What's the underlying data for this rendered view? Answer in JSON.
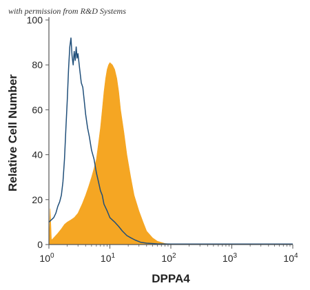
{
  "chart_data": {
    "type": "area",
    "note": "with permission from R&D Systems",
    "xlabel": "DPPA4",
    "ylabel": "Relative Cell Number",
    "xscale": "log",
    "xlim": [
      1,
      10000
    ],
    "ylim": [
      0,
      100
    ],
    "yticks": [
      0,
      20,
      40,
      60,
      80,
      100
    ],
    "xticks": [
      {
        "value": 1,
        "base": "10",
        "exp": "0"
      },
      {
        "value": 10,
        "base": "10",
        "exp": "1"
      },
      {
        "value": 100,
        "base": "10",
        "exp": "2"
      },
      {
        "value": 1000,
        "base": "10",
        "exp": "3"
      },
      {
        "value": 10000,
        "base": "10",
        "exp": "4"
      }
    ],
    "grid": false,
    "legend": "none",
    "series": [
      {
        "style": "filled",
        "color": "#f5a623",
        "points": [
          [
            1.0,
            0
          ],
          [
            1.05,
            16
          ],
          [
            1.1,
            2
          ],
          [
            1.2,
            3
          ],
          [
            1.4,
            5
          ],
          [
            1.6,
            7
          ],
          [
            1.8,
            9
          ],
          [
            2.0,
            10
          ],
          [
            2.3,
            11
          ],
          [
            2.6,
            12
          ],
          [
            3.0,
            14
          ],
          [
            3.5,
            18
          ],
          [
            4.0,
            22
          ],
          [
            4.5,
            26
          ],
          [
            5.0,
            30
          ],
          [
            5.5,
            34
          ],
          [
            6.0,
            38
          ],
          [
            6.5,
            45
          ],
          [
            7.0,
            52
          ],
          [
            7.5,
            60
          ],
          [
            8.0,
            68
          ],
          [
            8.5,
            74
          ],
          [
            9.0,
            78
          ],
          [
            9.5,
            80
          ],
          [
            10.0,
            81
          ],
          [
            11.0,
            80
          ],
          [
            12.0,
            78
          ],
          [
            13.0,
            74
          ],
          [
            14.0,
            68
          ],
          [
            15.0,
            60
          ],
          [
            17.0,
            50
          ],
          [
            19.0,
            40
          ],
          [
            22.0,
            30
          ],
          [
            25.0,
            22
          ],
          [
            30.0,
            15
          ],
          [
            35.0,
            10
          ],
          [
            40.0,
            6
          ],
          [
            50.0,
            3
          ],
          [
            60.0,
            1.5
          ],
          [
            80.0,
            0.5
          ],
          [
            100.0,
            0.2
          ],
          [
            10000.0,
            0
          ]
        ]
      },
      {
        "style": "line",
        "color": "#1f4e79",
        "points": [
          [
            1.0,
            10
          ],
          [
            1.1,
            11
          ],
          [
            1.2,
            12
          ],
          [
            1.3,
            14
          ],
          [
            1.4,
            17
          ],
          [
            1.5,
            19
          ],
          [
            1.6,
            22
          ],
          [
            1.7,
            28
          ],
          [
            1.8,
            38
          ],
          [
            1.9,
            52
          ],
          [
            2.0,
            64
          ],
          [
            2.1,
            78
          ],
          [
            2.2,
            88
          ],
          [
            2.3,
            92
          ],
          [
            2.4,
            84
          ],
          [
            2.5,
            80
          ],
          [
            2.6,
            86
          ],
          [
            2.7,
            82
          ],
          [
            2.8,
            88
          ],
          [
            2.9,
            83
          ],
          [
            3.0,
            85
          ],
          [
            3.2,
            78
          ],
          [
            3.4,
            72
          ],
          [
            3.6,
            70
          ],
          [
            3.8,
            64
          ],
          [
            4.0,
            58
          ],
          [
            4.3,
            52
          ],
          [
            4.6,
            48
          ],
          [
            5.0,
            42
          ],
          [
            5.5,
            38
          ],
          [
            6.0,
            32
          ],
          [
            6.5,
            28
          ],
          [
            7.0,
            24
          ],
          [
            7.5,
            22
          ],
          [
            8.0,
            18
          ],
          [
            9.0,
            15
          ],
          [
            10.0,
            12
          ],
          [
            12.0,
            10
          ],
          [
            14.0,
            8
          ],
          [
            16.0,
            6
          ],
          [
            19.0,
            4
          ],
          [
            22.0,
            3
          ],
          [
            26.0,
            2
          ],
          [
            32.0,
            1
          ],
          [
            40.0,
            0.6
          ],
          [
            60.0,
            0.3
          ],
          [
            100.0,
            0.2
          ],
          [
            10000.0,
            0.2
          ]
        ]
      }
    ]
  }
}
